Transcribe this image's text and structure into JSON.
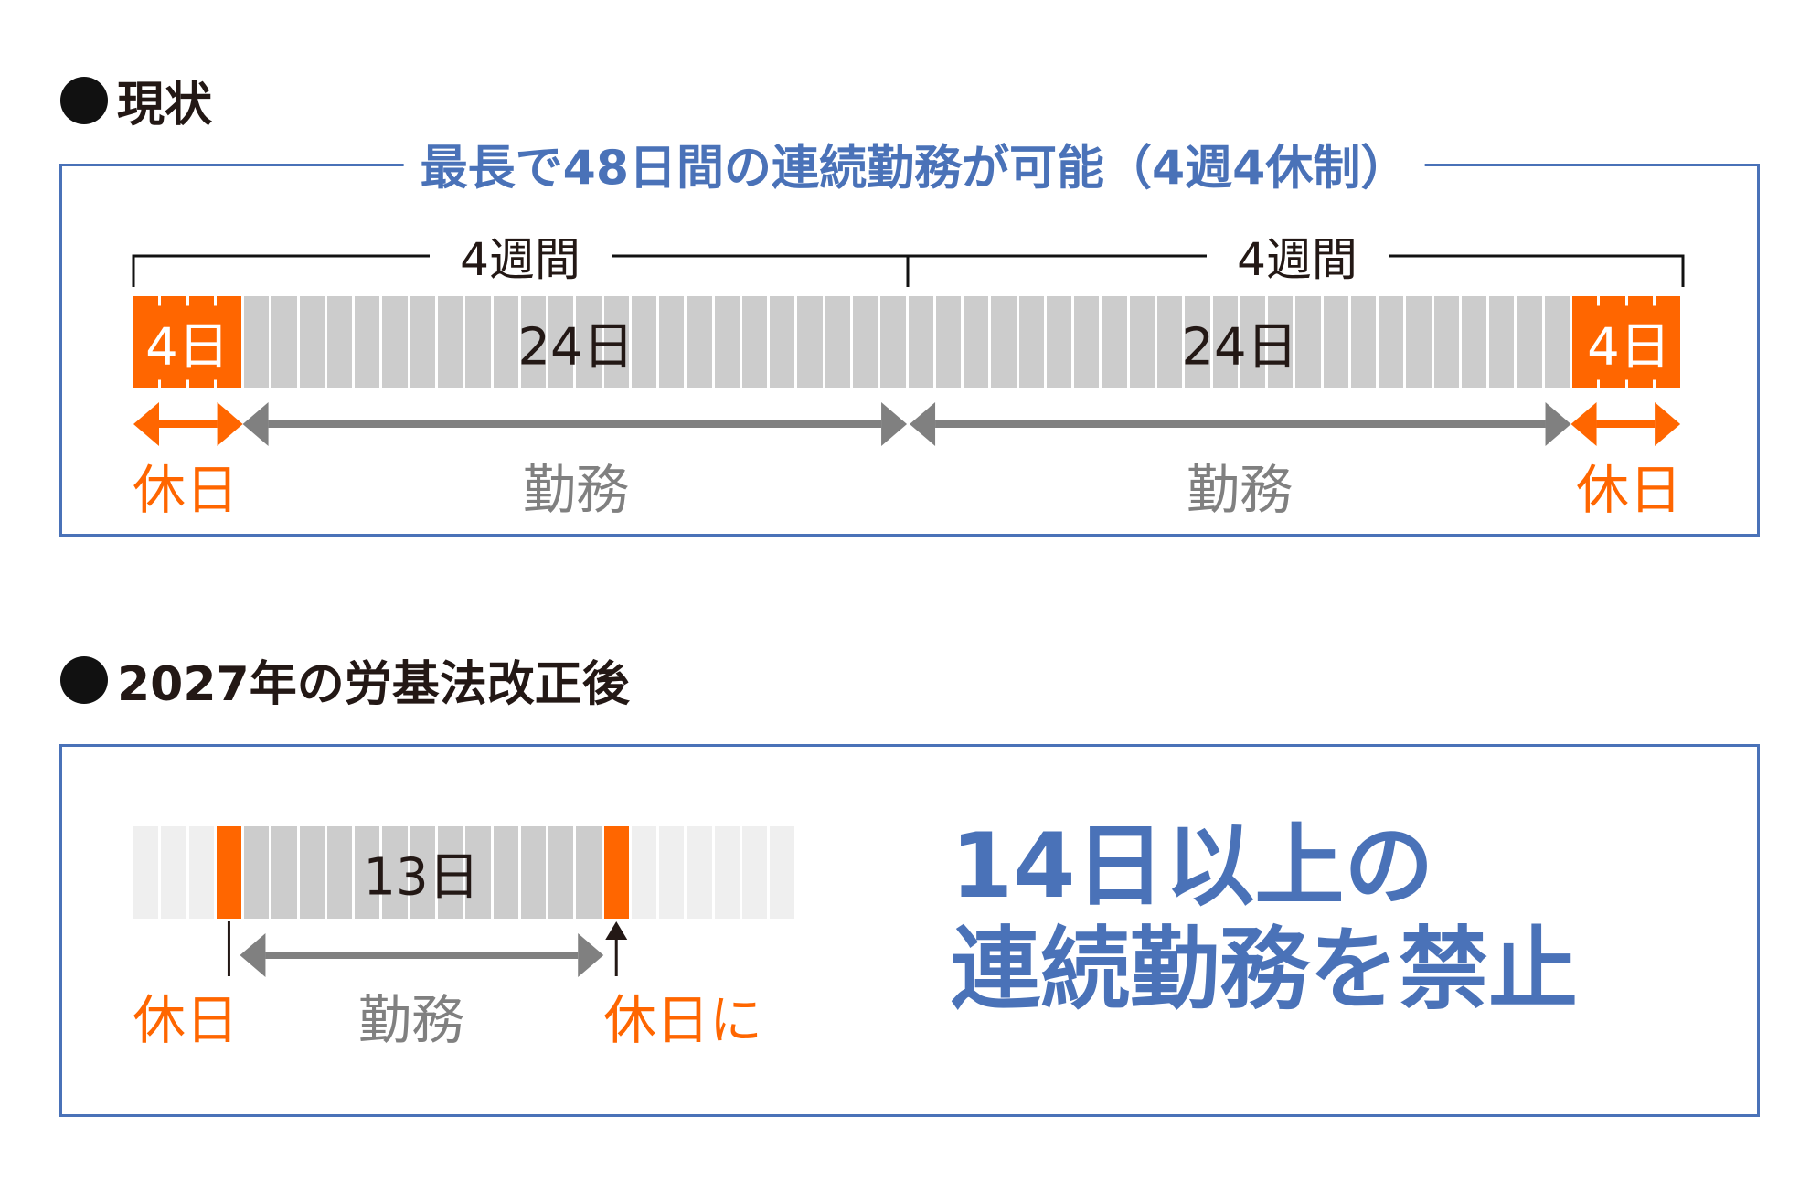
{
  "colors": {
    "accent": "#4a72b8",
    "holiday": "#ff6600",
    "work": "#cccccc",
    "inactive": "#efefef",
    "arrow": "#808080"
  },
  "current": {
    "section_title": "現状",
    "box_title": "最長で48日間の連続勤務が可能（4週4休制）",
    "week_labels": [
      "4週間",
      "4週間"
    ],
    "holiday_count_label": "4日",
    "work_count_labels": [
      "24日",
      "24日"
    ],
    "holiday_label": "休日",
    "work_label": "勤務",
    "cells": {
      "total": 56,
      "holiday_start": 4,
      "holiday_end": 4
    }
  },
  "after": {
    "section_title": "2027年の労基法改正後",
    "work_count_label": "13日",
    "holiday_label": "休日",
    "work_label": "勤務",
    "holiday_to_label": "休日に",
    "cells": {
      "total": 24,
      "holiday_indices": [
        3,
        17
      ],
      "work_from": 4,
      "work_to": 16
    },
    "headline_line1": "14日以上の",
    "headline_line2": "連続勤務を禁止"
  }
}
